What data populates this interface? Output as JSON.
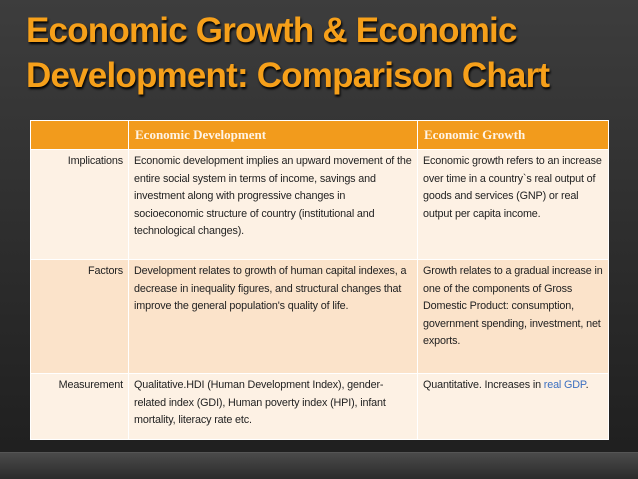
{
  "title": {
    "line1": "Economic Growth & Economic",
    "line2": "Development: Comparison Chart"
  },
  "table": {
    "header": [
      "",
      "Economic Development",
      "Economic Growth"
    ],
    "rows": [
      {
        "label": "Implications",
        "development": "Economic development implies an upward movement of the entire social system in terms of income, savings and investment along with progressive changes in socioeconomic structure of country (institutional and technological changes).",
        "growth": "Economic growth refers to an increase over time in a country`s real output of goods and services (GNP) or real output per capita income."
      },
      {
        "label": "Factors",
        "development": "Development relates to growth of human capital indexes, a decrease in inequality figures, and structural changes that improve the general population's quality of life.",
        "growth": "Growth relates to a gradual increase in one of the components of Gross Domestic Product: consumption, government spending, investment, net exports."
      },
      {
        "label": "Measurement",
        "development": "Qualitative.HDI (Human Development Index), gender- related index (GDI), Human poverty index (HPI), infant mortality, literacy rate etc.",
        "growth": "Quantitative. Increases in ",
        "growth_link": "real GDP",
        "growth_end": "."
      }
    ]
  }
}
